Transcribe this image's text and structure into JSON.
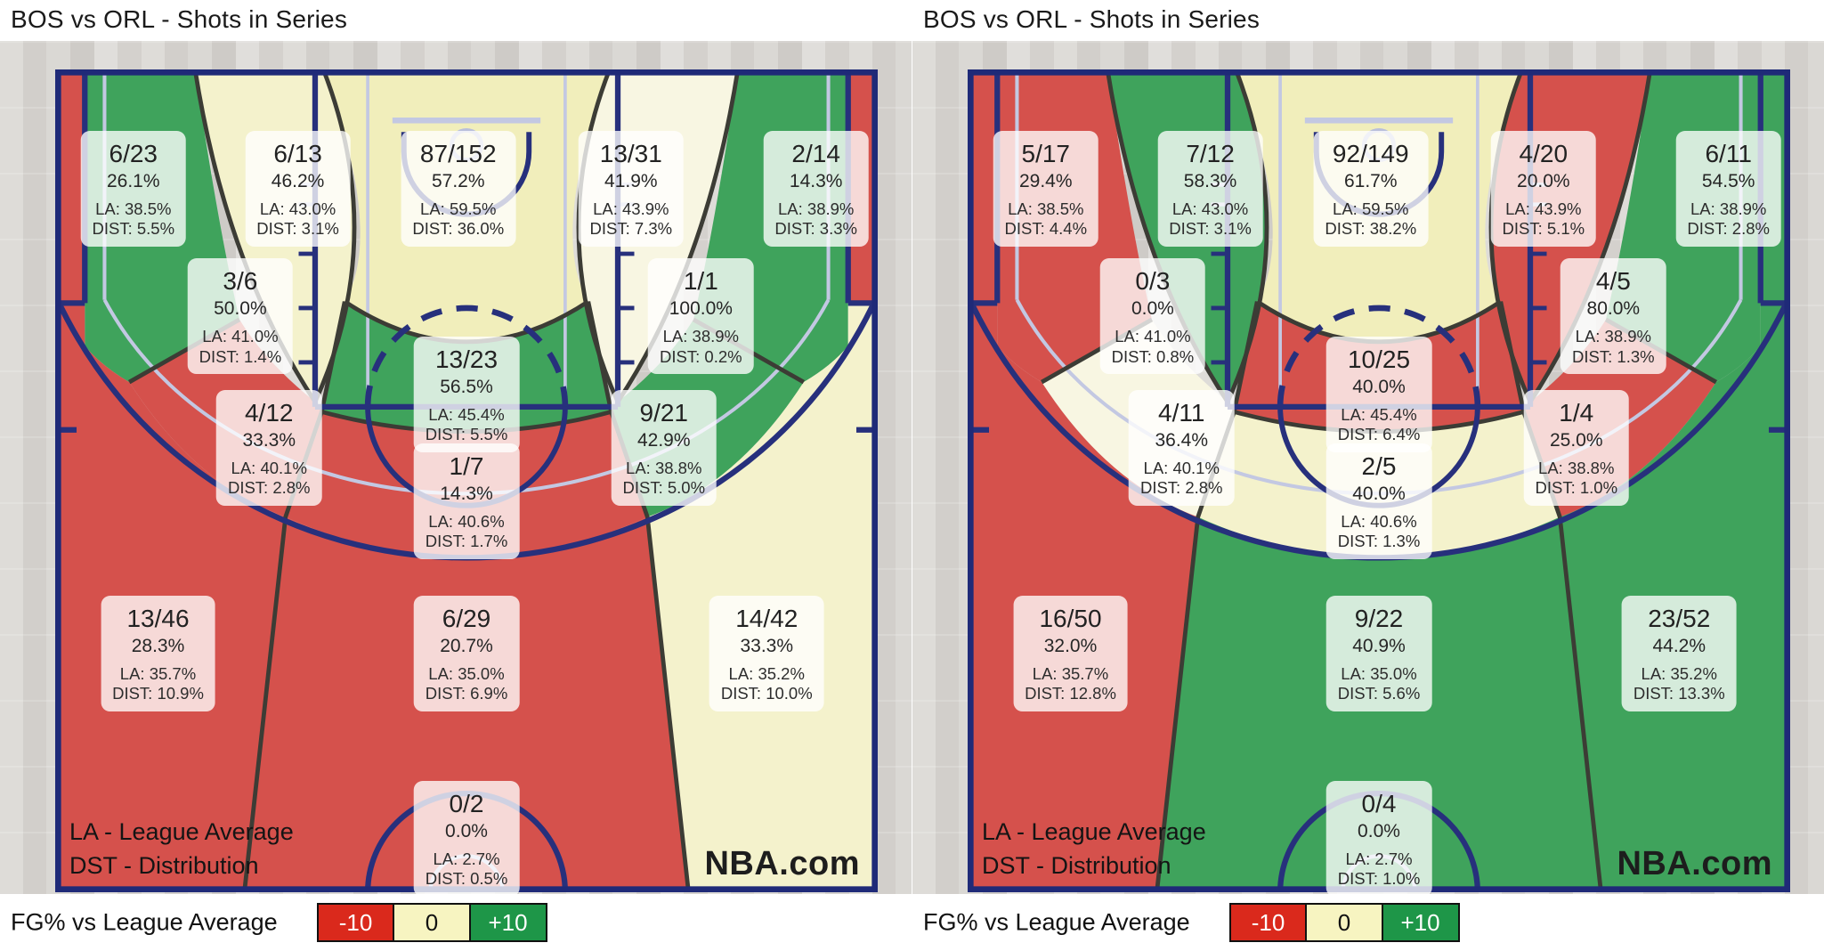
{
  "colors": {
    "red": "#d5514c",
    "green": "#3fa35c",
    "cream": "#f1eebb",
    "pale": "#f4f2cc",
    "lightpale": "#f8f6e2"
  },
  "legend": {
    "title": "FG% vs League Average",
    "stops": [
      {
        "label": "-10",
        "color": "#da291c",
        "text": "#ffffff"
      },
      {
        "label": "0",
        "color": "#f7f4c1",
        "text": "#111111"
      },
      {
        "label": "+10",
        "color": "#1e9648",
        "text": "#ffffff"
      }
    ]
  },
  "chart_data": [
    {
      "type": "heatmap",
      "title": "BOS vs ORL - Shots in Series",
      "watermark": "NBA.com",
      "notes": [
        "LA - League Average",
        "DST - Distribution"
      ],
      "legend_note": "zone color = FG% vs league average, -10 red to +10 green",
      "zones": [
        {
          "id": "corner3-left",
          "made_att": "6/23",
          "pct": "26.1%",
          "la": "LA: 38.5%",
          "dist": "DIST: 5.5%",
          "color": "red"
        },
        {
          "id": "wing-mid-left",
          "made_att": "6/13",
          "pct": "46.2%",
          "la": "LA: 43.0%",
          "dist": "DIST: 3.1%",
          "color": "pale"
        },
        {
          "id": "restricted-area",
          "made_att": "87/152",
          "pct": "57.2%",
          "la": "LA: 59.5%",
          "dist": "DIST: 36.0%",
          "color": "cream"
        },
        {
          "id": "wing-mid-right",
          "made_att": "13/31",
          "pct": "41.9%",
          "la": "LA: 43.9%",
          "dist": "DIST: 7.3%",
          "color": "lightpale"
        },
        {
          "id": "corner3-right",
          "made_att": "2/14",
          "pct": "14.3%",
          "la": "LA: 38.9%",
          "dist": "DIST: 3.3%",
          "color": "red"
        },
        {
          "id": "baseline-mid-left",
          "made_att": "3/6",
          "pct": "50.0%",
          "la": "LA: 41.0%",
          "dist": "DIST: 1.4%",
          "color": "green"
        },
        {
          "id": "paint",
          "made_att": "13/23",
          "pct": "56.5%",
          "la": "LA: 45.4%",
          "dist": "DIST: 5.5%",
          "color": "green"
        },
        {
          "id": "baseline-mid-right",
          "made_att": "1/1",
          "pct": "100.0%",
          "la": "LA: 38.9%",
          "dist": "DIST: 0.2%",
          "color": "green"
        },
        {
          "id": "elbow-left",
          "made_att": "4/12",
          "pct": "33.3%",
          "la": "LA: 40.1%",
          "dist": "DIST: 2.8%",
          "color": "red"
        },
        {
          "id": "ft-line",
          "made_att": "1/7",
          "pct": "14.3%",
          "la": "LA: 40.6%",
          "dist": "DIST: 1.7%",
          "color": "red"
        },
        {
          "id": "elbow-right",
          "made_att": "9/21",
          "pct": "42.9%",
          "la": "LA: 38.8%",
          "dist": "DIST: 5.0%",
          "color": "green"
        },
        {
          "id": "three-left",
          "made_att": "13/46",
          "pct": "28.3%",
          "la": "LA: 35.7%",
          "dist": "DIST: 10.9%",
          "color": "red"
        },
        {
          "id": "three-center",
          "made_att": "6/29",
          "pct": "20.7%",
          "la": "LA: 35.0%",
          "dist": "DIST: 6.9%",
          "color": "red"
        },
        {
          "id": "three-right",
          "made_att": "14/42",
          "pct": "33.3%",
          "la": "LA: 35.2%",
          "dist": "DIST: 10.0%",
          "color": "pale"
        },
        {
          "id": "backcourt",
          "made_att": "0/2",
          "pct": "0.0%",
          "la": "LA: 2.7%",
          "dist": "DIST: 0.5%",
          "color": "none"
        }
      ]
    },
    {
      "type": "heatmap",
      "title": "BOS vs ORL - Shots in Series",
      "watermark": "NBA.com",
      "notes": [
        "LA - League Average",
        "DST - Distribution"
      ],
      "legend_note": "zone color = FG% vs league average, -10 red to +10 green",
      "zones": [
        {
          "id": "corner3-left",
          "made_att": "5/17",
          "pct": "29.4%",
          "la": "LA: 38.5%",
          "dist": "DIST: 4.4%",
          "color": "red"
        },
        {
          "id": "wing-mid-left",
          "made_att": "7/12",
          "pct": "58.3%",
          "la": "LA: 43.0%",
          "dist": "DIST: 3.1%",
          "color": "green"
        },
        {
          "id": "restricted-area",
          "made_att": "92/149",
          "pct": "61.7%",
          "la": "LA: 59.5%",
          "dist": "DIST: 38.2%",
          "color": "cream"
        },
        {
          "id": "wing-mid-right",
          "made_att": "4/20",
          "pct": "20.0%",
          "la": "LA: 43.9%",
          "dist": "DIST: 5.1%",
          "color": "red"
        },
        {
          "id": "corner3-right",
          "made_att": "6/11",
          "pct": "54.5%",
          "la": "LA: 38.9%",
          "dist": "DIST: 2.8%",
          "color": "green"
        },
        {
          "id": "baseline-mid-left",
          "made_att": "0/3",
          "pct": "0.0%",
          "la": "LA: 41.0%",
          "dist": "DIST: 0.8%",
          "color": "red"
        },
        {
          "id": "paint",
          "made_att": "10/25",
          "pct": "40.0%",
          "la": "LA: 45.4%",
          "dist": "DIST: 6.4%",
          "color": "red"
        },
        {
          "id": "baseline-mid-right",
          "made_att": "4/5",
          "pct": "80.0%",
          "la": "LA: 38.9%",
          "dist": "DIST: 1.3%",
          "color": "green"
        },
        {
          "id": "elbow-left",
          "made_att": "4/11",
          "pct": "36.4%",
          "la": "LA: 40.1%",
          "dist": "DIST: 2.8%",
          "color": "lightpale"
        },
        {
          "id": "ft-line",
          "made_att": "2/5",
          "pct": "40.0%",
          "la": "LA: 40.6%",
          "dist": "DIST: 1.3%",
          "color": "pale"
        },
        {
          "id": "elbow-right",
          "made_att": "1/4",
          "pct": "25.0%",
          "la": "LA: 38.8%",
          "dist": "DIST: 1.0%",
          "color": "red"
        },
        {
          "id": "three-left",
          "made_att": "16/50",
          "pct": "32.0%",
          "la": "LA: 35.7%",
          "dist": "DIST: 12.8%",
          "color": "red"
        },
        {
          "id": "three-center",
          "made_att": "9/22",
          "pct": "40.9%",
          "la": "LA: 35.0%",
          "dist": "DIST: 5.6%",
          "color": "green"
        },
        {
          "id": "three-right",
          "made_att": "23/52",
          "pct": "44.2%",
          "la": "LA: 35.2%",
          "dist": "DIST: 13.3%",
          "color": "green"
        },
        {
          "id": "backcourt",
          "made_att": "0/4",
          "pct": "0.0%",
          "la": "LA: 2.7%",
          "dist": "DIST: 1.0%",
          "color": "none"
        }
      ]
    }
  ]
}
